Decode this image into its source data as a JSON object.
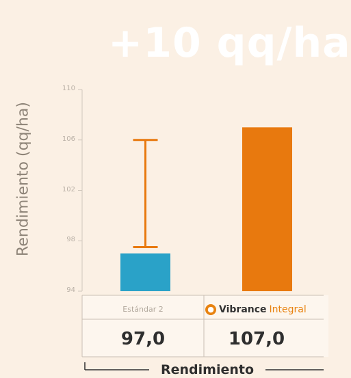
{
  "chart_data": {
    "type": "bar",
    "title": "+10 qq/ha",
    "ylabel": "Rendimiento (qq/ha)",
    "xlabel": "Rendimiento",
    "ylim": [
      94,
      110
    ],
    "yticks": [
      94,
      98,
      102,
      106,
      110
    ],
    "categories": [
      "Estándar 2",
      "Vibrance Integral"
    ],
    "values": [
      97.0,
      107.0
    ],
    "value_labels": [
      "97,0",
      "107,0"
    ],
    "error_bars": [
      {
        "low": 97.5,
        "high": 106
      }
    ],
    "colors": [
      "#2aa2c8",
      "#e8790e"
    ],
    "grid": false
  },
  "brand": {
    "name_primary": "Vibrance",
    "name_secondary": "Integral",
    "logo_icon": "flame-logo-icon"
  },
  "colors": {
    "banner": "#e8790e",
    "background": "#fbf0e4"
  }
}
